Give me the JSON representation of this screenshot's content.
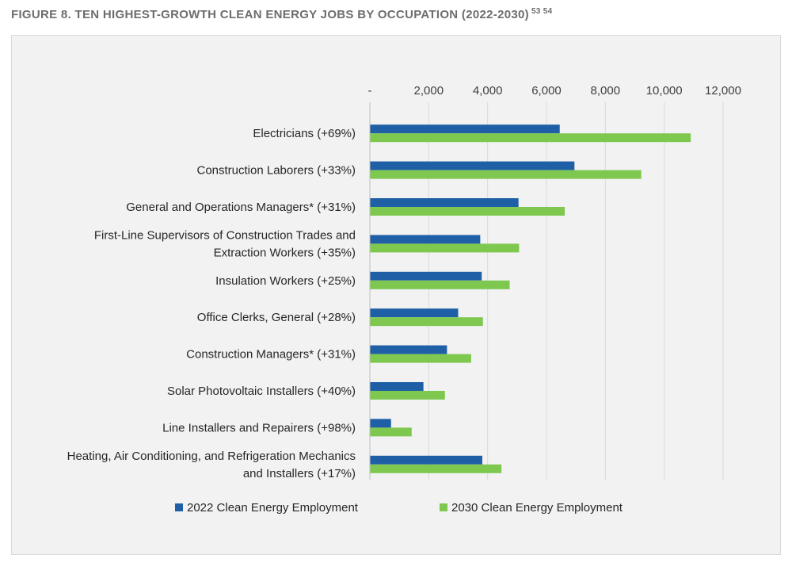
{
  "figure": {
    "title": "FIGURE 8. TEN HIGHEST-GROWTH CLEAN ENERGY JOBS BY OCCUPATION (2022-2030)",
    "footnotes": "53  54"
  },
  "colors": {
    "series_2022": "#1f5fa6",
    "series_2030": "#7ec850"
  },
  "chart_data": {
    "type": "bar",
    "orientation": "horizontal",
    "categories": [
      [
        "Electricians (+69%)"
      ],
      [
        "Construction Laborers (+33%)"
      ],
      [
        "General and Operations Managers* (+31%)"
      ],
      [
        "First-Line Supervisors of Construction Trades and",
        "Extraction Workers (+35%)"
      ],
      [
        "Insulation Workers (+25%)"
      ],
      [
        "Office Clerks, General (+28%)"
      ],
      [
        "Construction Managers* (+31%)"
      ],
      [
        "Solar Photovoltaic Installers (+40%)"
      ],
      [
        "Line Installers and Repairers (+98%)"
      ],
      [
        "Heating, Air Conditioning, and Refrigeration Mechanics",
        "and Installers (+17%)"
      ]
    ],
    "series": [
      {
        "name": "2022 Clean Energy Employment",
        "values": [
          6450,
          6950,
          5050,
          3750,
          3800,
          3000,
          2620,
          1820,
          720,
          3820
        ]
      },
      {
        "name": "2030 Clean Energy Employment",
        "values": [
          10900,
          9220,
          6620,
          5070,
          4750,
          3840,
          3440,
          2550,
          1420,
          4470
        ]
      }
    ],
    "xlim": [
      0,
      12000
    ],
    "xticks": [
      0,
      2000,
      4000,
      6000,
      8000,
      10000,
      12000
    ],
    "xtick_labels": [
      "-",
      "2,000",
      "4,000",
      "6,000",
      "8,000",
      "10,000",
      "12,000"
    ],
    "x_axis_position": "top",
    "grid": true,
    "legend_position": "bottom"
  }
}
